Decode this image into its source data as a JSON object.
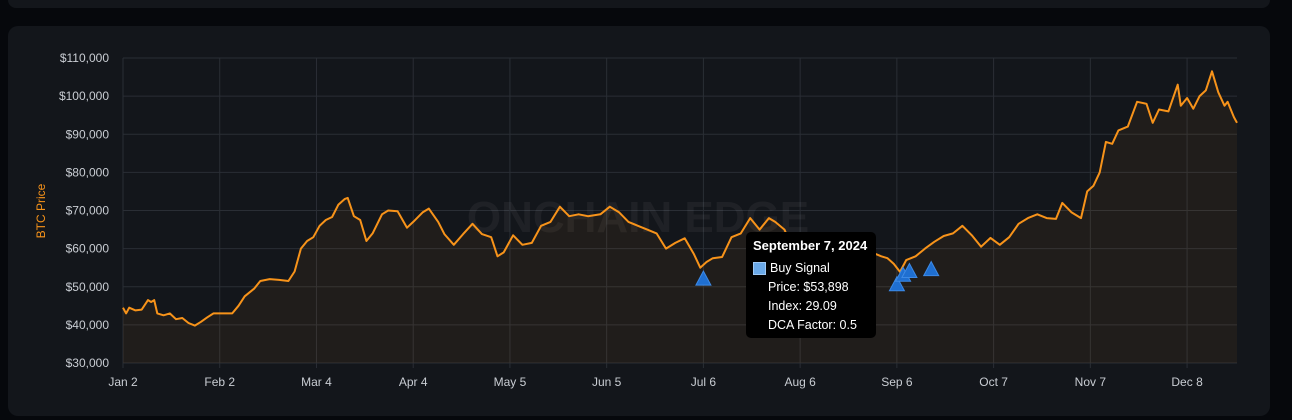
{
  "chart_data": {
    "type": "line",
    "watermark": "ONCHAIN EDGE",
    "ylabel": "BTC Price",
    "ylim": [
      30000,
      110000
    ],
    "yticks": [
      "$30,000",
      "$40,000",
      "$50,000",
      "$60,000",
      "$70,000",
      "$80,000",
      "$90,000",
      "$100,000",
      "$110,000"
    ],
    "ytick_values": [
      30000,
      40000,
      50000,
      60000,
      70000,
      80000,
      90000,
      100000,
      110000
    ],
    "xticks": [
      "Jan 2",
      "Feb 2",
      "Mar 4",
      "Apr 4",
      "May 5",
      "Jun 5",
      "Jul 6",
      "Aug 6",
      "Sep 6",
      "Oct 7",
      "Nov 7",
      "Dec 8"
    ],
    "xtick_dates": [
      "2024-01-02",
      "2024-02-02",
      "2024-03-04",
      "2024-04-04",
      "2024-05-05",
      "2024-06-05",
      "2024-07-06",
      "2024-08-06",
      "2024-09-06",
      "2024-10-07",
      "2024-11-07",
      "2024-12-08"
    ],
    "xlim": [
      "2024-01-02",
      "2024-12-24"
    ],
    "grid": true,
    "colors": {
      "price": "#f7931a",
      "buy": "#1f6fd1",
      "grid": "#2a2e35"
    },
    "series": [
      {
        "values": [
          [
            "2024-01-02",
            44500
          ],
          [
            "2024-01-03",
            43000
          ],
          [
            "2024-01-04",
            44500
          ],
          [
            "2024-01-06",
            43800
          ],
          [
            "2024-01-08",
            44000
          ],
          [
            "2024-01-10",
            46500
          ],
          [
            "2024-01-11",
            46000
          ],
          [
            "2024-01-12",
            46500
          ],
          [
            "2024-01-13",
            43000
          ],
          [
            "2024-01-15",
            42500
          ],
          [
            "2024-01-17",
            43000
          ],
          [
            "2024-01-19",
            41500
          ],
          [
            "2024-01-21",
            41800
          ],
          [
            "2024-01-23",
            40500
          ],
          [
            "2024-01-25",
            39800
          ],
          [
            "2024-01-27",
            40800
          ],
          [
            "2024-01-29",
            42000
          ],
          [
            "2024-01-31",
            43000
          ],
          [
            "2024-02-03",
            43000
          ],
          [
            "2024-02-06",
            43000
          ],
          [
            "2024-02-08",
            45000
          ],
          [
            "2024-02-10",
            47500
          ],
          [
            "2024-02-13",
            49500
          ],
          [
            "2024-02-15",
            51500
          ],
          [
            "2024-02-18",
            52000
          ],
          [
            "2024-02-21",
            51800
          ],
          [
            "2024-02-24",
            51500
          ],
          [
            "2024-02-26",
            54000
          ],
          [
            "2024-02-28",
            60000
          ],
          [
            "2024-03-01",
            62000
          ],
          [
            "2024-03-03",
            63000
          ],
          [
            "2024-03-05",
            66000
          ],
          [
            "2024-03-07",
            67500
          ],
          [
            "2024-03-09",
            68300
          ],
          [
            "2024-03-11",
            71500
          ],
          [
            "2024-03-13",
            73000
          ],
          [
            "2024-03-14",
            73300
          ],
          [
            "2024-03-16",
            68500
          ],
          [
            "2024-03-18",
            67500
          ],
          [
            "2024-03-20",
            62000
          ],
          [
            "2024-03-22",
            64000
          ],
          [
            "2024-03-25",
            69000
          ],
          [
            "2024-03-27",
            70000
          ],
          [
            "2024-03-30",
            69800
          ],
          [
            "2024-04-02",
            65500
          ],
          [
            "2024-04-04",
            67000
          ],
          [
            "2024-04-07",
            69500
          ],
          [
            "2024-04-09",
            70500
          ],
          [
            "2024-04-12",
            67000
          ],
          [
            "2024-04-14",
            63800
          ],
          [
            "2024-04-17",
            61000
          ],
          [
            "2024-04-20",
            63800
          ],
          [
            "2024-04-23",
            66500
          ],
          [
            "2024-04-26",
            63800
          ],
          [
            "2024-04-29",
            63000
          ],
          [
            "2024-05-01",
            58000
          ],
          [
            "2024-05-03",
            59000
          ],
          [
            "2024-05-06",
            63500
          ],
          [
            "2024-05-09",
            61000
          ],
          [
            "2024-05-12",
            61500
          ],
          [
            "2024-05-15",
            66000
          ],
          [
            "2024-05-18",
            67000
          ],
          [
            "2024-05-21",
            71000
          ],
          [
            "2024-05-24",
            68500
          ],
          [
            "2024-05-27",
            69000
          ],
          [
            "2024-05-30",
            68500
          ],
          [
            "2024-06-03",
            69000
          ],
          [
            "2024-06-06",
            71000
          ],
          [
            "2024-06-09",
            69500
          ],
          [
            "2024-06-12",
            67000
          ],
          [
            "2024-06-15",
            66000
          ],
          [
            "2024-06-18",
            65000
          ],
          [
            "2024-06-21",
            64000
          ],
          [
            "2024-06-24",
            60000
          ],
          [
            "2024-06-27",
            61500
          ],
          [
            "2024-06-30",
            62700
          ],
          [
            "2024-07-03",
            58500
          ],
          [
            "2024-07-05",
            55000
          ],
          [
            "2024-07-07",
            56500
          ],
          [
            "2024-07-09",
            57500
          ],
          [
            "2024-07-12",
            57800
          ],
          [
            "2024-07-15",
            63000
          ],
          [
            "2024-07-18",
            64000
          ],
          [
            "2024-07-21",
            68000
          ],
          [
            "2024-07-24",
            65000
          ],
          [
            "2024-07-27",
            68000
          ],
          [
            "2024-07-29",
            67000
          ],
          [
            "2024-08-01",
            65000
          ],
          [
            "2024-08-03",
            61000
          ],
          [
            "2024-08-05",
            54000
          ],
          [
            "2024-08-08",
            61500
          ],
          [
            "2024-08-11",
            58500
          ],
          [
            "2024-08-14",
            59000
          ],
          [
            "2024-08-17",
            59000
          ],
          [
            "2024-08-20",
            59200
          ],
          [
            "2024-08-23",
            64000
          ],
          [
            "2024-08-26",
            62500
          ],
          [
            "2024-08-29",
            59000
          ],
          [
            "2024-09-01",
            58000
          ],
          [
            "2024-09-03",
            57500
          ],
          [
            "2024-09-05",
            56000
          ],
          [
            "2024-09-07",
            53898
          ],
          [
            "2024-09-09",
            57000
          ],
          [
            "2024-09-12",
            58000
          ],
          [
            "2024-09-15",
            60000
          ],
          [
            "2024-09-18",
            61800
          ],
          [
            "2024-09-21",
            63300
          ],
          [
            "2024-09-24",
            64000
          ],
          [
            "2024-09-27",
            66000
          ],
          [
            "2024-09-30",
            63500
          ],
          [
            "2024-10-03",
            60500
          ],
          [
            "2024-10-06",
            62800
          ],
          [
            "2024-10-09",
            61000
          ],
          [
            "2024-10-12",
            63000
          ],
          [
            "2024-10-15",
            66500
          ],
          [
            "2024-10-18",
            68000
          ],
          [
            "2024-10-21",
            69000
          ],
          [
            "2024-10-24",
            68000
          ],
          [
            "2024-10-27",
            67800
          ],
          [
            "2024-10-29",
            72000
          ],
          [
            "2024-11-01",
            69500
          ],
          [
            "2024-11-04",
            68000
          ],
          [
            "2024-11-06",
            75000
          ],
          [
            "2024-11-08",
            76500
          ],
          [
            "2024-11-10",
            80000
          ],
          [
            "2024-11-12",
            88000
          ],
          [
            "2024-11-14",
            87500
          ],
          [
            "2024-11-16",
            91000
          ],
          [
            "2024-11-19",
            92000
          ],
          [
            "2024-11-22",
            98500
          ],
          [
            "2024-11-25",
            98000
          ],
          [
            "2024-11-27",
            93000
          ],
          [
            "2024-11-29",
            96500
          ],
          [
            "2024-12-02",
            96000
          ],
          [
            "2024-12-05",
            103000
          ],
          [
            "2024-12-06",
            97500
          ],
          [
            "2024-12-08",
            99500
          ],
          [
            "2024-12-10",
            96700
          ],
          [
            "2024-12-12",
            100000
          ],
          [
            "2024-12-14",
            101500
          ],
          [
            "2024-12-16",
            106500
          ],
          [
            "2024-12-18",
            101000
          ],
          [
            "2024-12-20",
            97500
          ],
          [
            "2024-12-21",
            98500
          ],
          [
            "2024-12-23",
            94500
          ],
          [
            "2024-12-24",
            93000
          ]
        ]
      }
    ],
    "buy_signals": [
      {
        "date": "2024-07-06",
        "price": 52000
      },
      {
        "date": "2024-09-06",
        "price": 50500
      },
      {
        "date": "2024-09-08",
        "price": 53000
      },
      {
        "date": "2024-09-10",
        "price": 54000
      },
      {
        "date": "2024-09-17",
        "price": 54500
      }
    ],
    "tooltip": {
      "title": "September 7, 2024",
      "series_label": "Buy Signal",
      "lines": [
        "Price: $53,898",
        "Index: 29.09",
        "DCA Factor: 0.5"
      ]
    }
  }
}
